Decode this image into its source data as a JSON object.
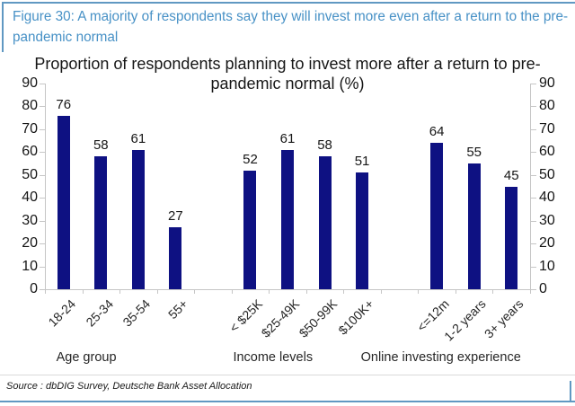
{
  "header": {
    "title": "Figure 30: A majority of respondents say they will invest more even after a return to the pre-pandemic normal"
  },
  "chart_data": {
    "type": "bar",
    "title": "Proportion of respondents planning to invest more after a return to pre-pandemic normal (%)",
    "xlabel": "",
    "ylabel": "",
    "ylim": [
      0,
      90
    ],
    "yticks": [
      0,
      10,
      20,
      30,
      40,
      50,
      60,
      70,
      80,
      90
    ],
    "y_axis_sides": "both",
    "grid": false,
    "legend_position": "none",
    "groups": [
      {
        "label": "Age group",
        "categories": [
          "18-24",
          "25-34",
          "35-54",
          "55+"
        ],
        "values": [
          76,
          58,
          61,
          27
        ]
      },
      {
        "label": "Income levels",
        "categories": [
          "< $25K",
          "$25-49K",
          "$50-99K",
          "$100K+"
        ],
        "values": [
          52,
          61,
          58,
          51
        ]
      },
      {
        "label": "Online investing experience",
        "categories": [
          "<=12m",
          "1-2 years",
          "3+ years"
        ],
        "values": [
          64,
          55,
          45
        ]
      }
    ]
  },
  "source": {
    "text": "Source : dbDIG Survey, Deutsche Bank Asset Allocation"
  },
  "colors": {
    "bar_navy": "#0e1182",
    "accent_blue": "#4791c6",
    "border_blue": "#6098c2",
    "axis_gray": "#c6c6c6"
  }
}
